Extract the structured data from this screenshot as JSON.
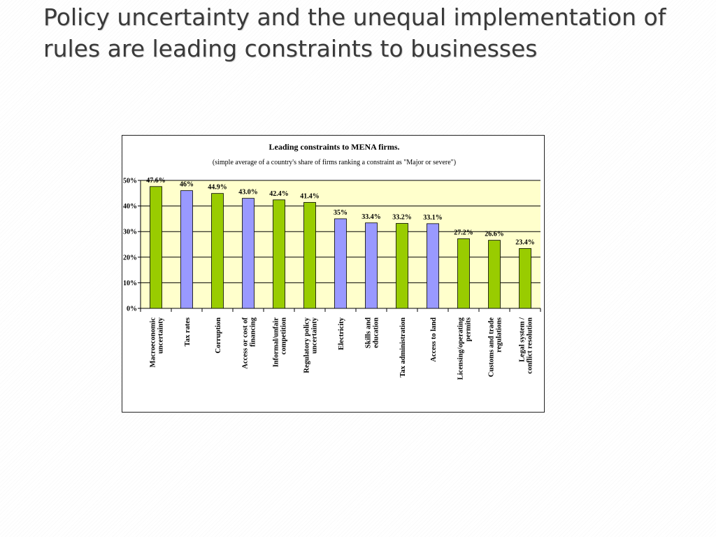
{
  "slide": {
    "title": "Policy uncertainty and the unequal implementation of rules are leading constraints to businesses"
  },
  "chart_data": {
    "type": "bar",
    "title": "Leading constraints to MENA firms.",
    "subtitle": "(simple average of a country's share of firms ranking a constraint as \"Major or severe\")",
    "categories": [
      [
        "Macroeconomic",
        "uncertainty"
      ],
      [
        "Tax rates"
      ],
      [
        "Corruption"
      ],
      [
        "Access or cost of",
        "financing"
      ],
      [
        "Informal/unfair",
        "competition"
      ],
      [
        "Regulatory policy",
        "uncertainty"
      ],
      [
        "Electricity"
      ],
      [
        "Skills and",
        "education"
      ],
      [
        "Tax administration"
      ],
      [
        "Access to land"
      ],
      [
        "Licensing/operating",
        "permits"
      ],
      [
        "Customs and trade",
        "regulations"
      ],
      [
        "Legal system /",
        "conflict resolution"
      ]
    ],
    "values": [
      47.6,
      46,
      44.9,
      43.0,
      42.4,
      41.4,
      35,
      33.4,
      33.2,
      33.1,
      27.2,
      26.6,
      23.4
    ],
    "data_labels": [
      "47.6%",
      "46%",
      "44.9%",
      "43.0%",
      "42.4%",
      "41.4%",
      "35%",
      "33.4%",
      "33.2%",
      "33.1%",
      "27.2%",
      "26.6%",
      "23.4%"
    ],
    "bar_colors": [
      "#99cc00",
      "#9999ff",
      "#99cc00",
      "#9999ff",
      "#99cc00",
      "#99cc00",
      "#9999ff",
      "#9999ff",
      "#99cc00",
      "#9999ff",
      "#99cc00",
      "#99cc00",
      "#99cc00"
    ],
    "plot_background": "#ffffcc",
    "ylim": [
      0,
      50
    ],
    "yticks": [
      "0%",
      "10%",
      "20%",
      "30%",
      "40%",
      "50%"
    ],
    "grid": true
  }
}
